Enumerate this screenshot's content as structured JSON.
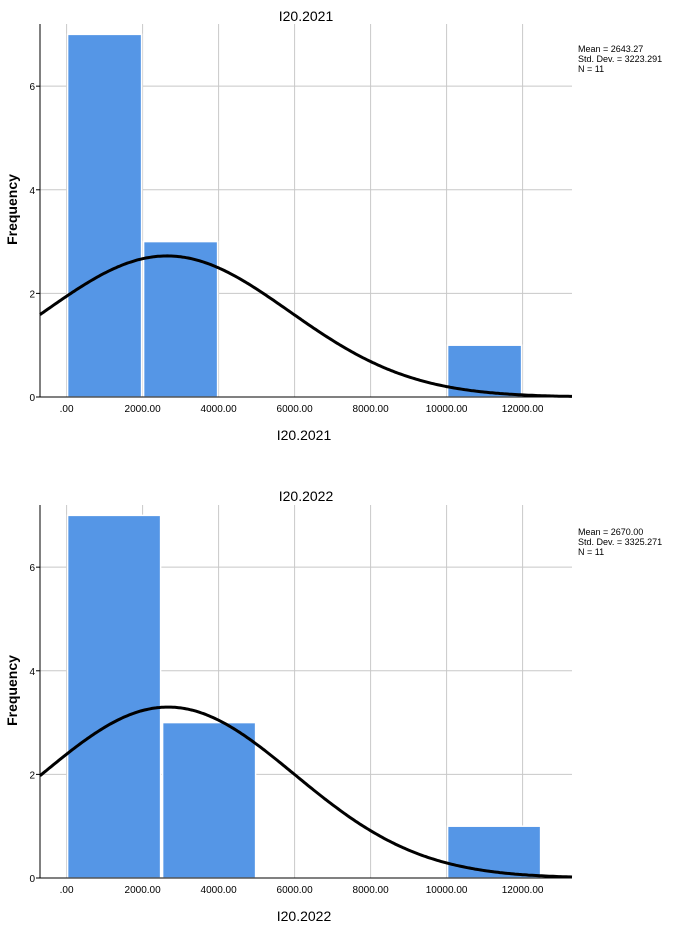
{
  "chart_data": [
    {
      "type": "bar",
      "title": "I20.2021",
      "xlabel": "I20.2021",
      "ylabel": "Frequency",
      "bins": [
        {
          "start": 0,
          "end": 2000,
          "count": 7
        },
        {
          "start": 2000,
          "end": 4000,
          "count": 3
        },
        {
          "start": 10000,
          "end": 12000,
          "count": 1
        }
      ],
      "xlim": [
        -700,
        13300
      ],
      "ylim": [
        0,
        7.2
      ],
      "x_ticks": [
        0,
        2000,
        4000,
        6000,
        8000,
        10000,
        12000
      ],
      "x_tick_labels": [
        ".00",
        "2000.00",
        "4000.00",
        "6000.00",
        "8000.00",
        "10000.00",
        "12000.00"
      ],
      "y_ticks": [
        0,
        2,
        4,
        6
      ],
      "y_tick_labels": [
        "0",
        "2",
        "4",
        "6"
      ],
      "grid": true,
      "normal_curve": {
        "mean": 2643.27,
        "std_dev": 3223.291,
        "n": 11,
        "bin_width": 2000
      },
      "stats": {
        "mean": "Mean = 2643.27",
        "std_dev": "Std. Dev. = 3223.291",
        "n": "N = 11"
      },
      "legend_placement": "top-right"
    },
    {
      "type": "bar",
      "title": "I20.2022",
      "xlabel": "I20.2022",
      "ylabel": "Frequency",
      "bins": [
        {
          "start": 0,
          "end": 2500,
          "count": 7
        },
        {
          "start": 2500,
          "end": 5000,
          "count": 3
        },
        {
          "start": 10000,
          "end": 12500,
          "count": 1
        }
      ],
      "xlim": [
        -700,
        13300
      ],
      "ylim": [
        0,
        7.2
      ],
      "x_ticks": [
        0,
        2000,
        4000,
        6000,
        8000,
        10000,
        12000
      ],
      "x_tick_labels": [
        ".00",
        "2000.00",
        "4000.00",
        "6000.00",
        "8000.00",
        "10000.00",
        "12000.00"
      ],
      "y_ticks": [
        0,
        2,
        4,
        6
      ],
      "y_tick_labels": [
        "0",
        "2",
        "4",
        "6"
      ],
      "grid": true,
      "normal_curve": {
        "mean": 2670.0,
        "std_dev": 3325.271,
        "n": 11,
        "bin_width": 2500
      },
      "stats": {
        "mean": "Mean = 2670.00",
        "std_dev": "Std. Dev. = 3325.271",
        "n": "N = 11"
      },
      "legend_placement": "top-right"
    }
  ],
  "colors": {
    "bar_fill": "#5596e6",
    "bar_stroke": "#ffffff",
    "grid": "#c8c8c8",
    "curve": "#000000",
    "axis": "#000000"
  }
}
